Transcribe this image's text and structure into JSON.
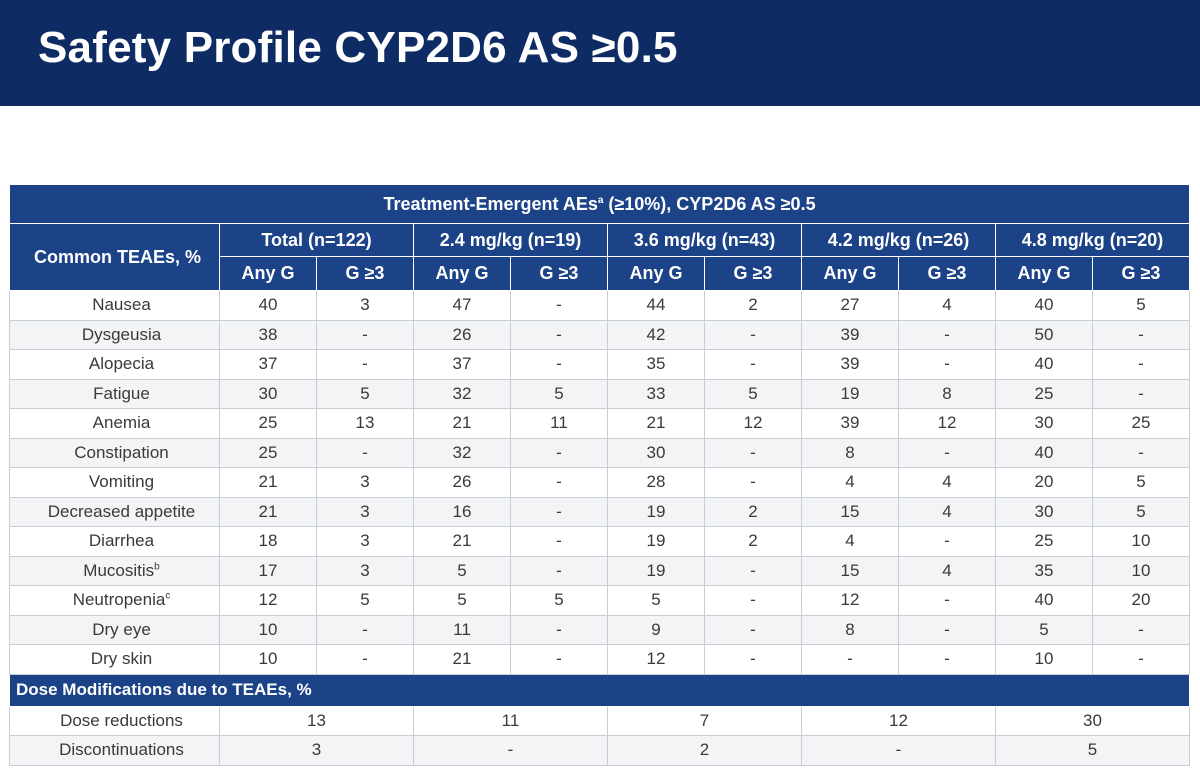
{
  "title": "Safety Profile CYP2D6 AS ≥0.5",
  "table": {
    "caption": "Treatment-Emergent AEs",
    "caption_sup": "a",
    "caption_rest": " (≥10%), CYP2D6 AS ≥0.5",
    "row_header": "Common TEAEs, %",
    "groups": [
      "Total (n=122)",
      "2.4 mg/kg (n=19)",
      "3.6 mg/kg (n=43)",
      "4.2 mg/kg (n=26)",
      "4.8 mg/kg (n=20)"
    ],
    "subheaders": [
      "Any G",
      "G ≥3",
      "Any G",
      "G ≥3",
      "Any G",
      "G ≥3",
      "Any G",
      "G ≥3",
      "Any G",
      "G ≥3"
    ],
    "rows": [
      {
        "name": "Nausea",
        "sup": "",
        "values": [
          "40",
          "3",
          "47",
          "-",
          "44",
          "2",
          "27",
          "4",
          "40",
          "5"
        ]
      },
      {
        "name": "Dysgeusia",
        "sup": "",
        "values": [
          "38",
          "-",
          "26",
          "-",
          "42",
          "-",
          "39",
          "-",
          "50",
          "-"
        ]
      },
      {
        "name": "Alopecia",
        "sup": "",
        "values": [
          "37",
          "-",
          "37",
          "-",
          "35",
          "-",
          "39",
          "-",
          "40",
          "-"
        ]
      },
      {
        "name": "Fatigue",
        "sup": "",
        "values": [
          "30",
          "5",
          "32",
          "5",
          "33",
          "5",
          "19",
          "8",
          "25",
          "-"
        ]
      },
      {
        "name": "Anemia",
        "sup": "",
        "values": [
          "25",
          "13",
          "21",
          "11",
          "21",
          "12",
          "39",
          "12",
          "30",
          "25"
        ]
      },
      {
        "name": "Constipation",
        "sup": "",
        "values": [
          "25",
          "-",
          "32",
          "-",
          "30",
          "-",
          "8",
          "-",
          "40",
          "-"
        ]
      },
      {
        "name": "Vomiting",
        "sup": "",
        "values": [
          "21",
          "3",
          "26",
          "-",
          "28",
          "-",
          "4",
          "4",
          "20",
          "5"
        ]
      },
      {
        "name": "Decreased appetite",
        "sup": "",
        "values": [
          "21",
          "3",
          "16",
          "-",
          "19",
          "2",
          "15",
          "4",
          "30",
          "5"
        ]
      },
      {
        "name": "Diarrhea",
        "sup": "",
        "values": [
          "18",
          "3",
          "21",
          "-",
          "19",
          "2",
          "4",
          "-",
          "25",
          "10"
        ]
      },
      {
        "name": "Mucositis",
        "sup": "b",
        "values": [
          "17",
          "3",
          "5",
          "-",
          "19",
          "-",
          "15",
          "4",
          "35",
          "10"
        ]
      },
      {
        "name": "Neutropenia",
        "sup": "c",
        "values": [
          "12",
          "5",
          "5",
          "5",
          "5",
          "-",
          "12",
          "-",
          "40",
          "20"
        ]
      },
      {
        "name": "Dry eye",
        "sup": "",
        "values": [
          "10",
          "-",
          "11",
          "-",
          "9",
          "-",
          "8",
          "-",
          "5",
          "-"
        ]
      },
      {
        "name": "Dry skin",
        "sup": "",
        "values": [
          "10",
          "-",
          "21",
          "-",
          "12",
          "-",
          "-",
          "-",
          "10",
          "-"
        ]
      }
    ],
    "dose_section_label": "Dose Modifications due to TEAEs, %",
    "dose_rows": [
      {
        "name": "Dose reductions",
        "values": [
          "13",
          "11",
          "7",
          "12",
          "30"
        ]
      },
      {
        "name": "Discontinuations",
        "values": [
          "3",
          "-",
          "2",
          "-",
          "5"
        ]
      }
    ]
  },
  "colors": {
    "title_bar": "#0e2c63",
    "header_blue": "#1c4387",
    "stripe": "#f3f4f6"
  }
}
